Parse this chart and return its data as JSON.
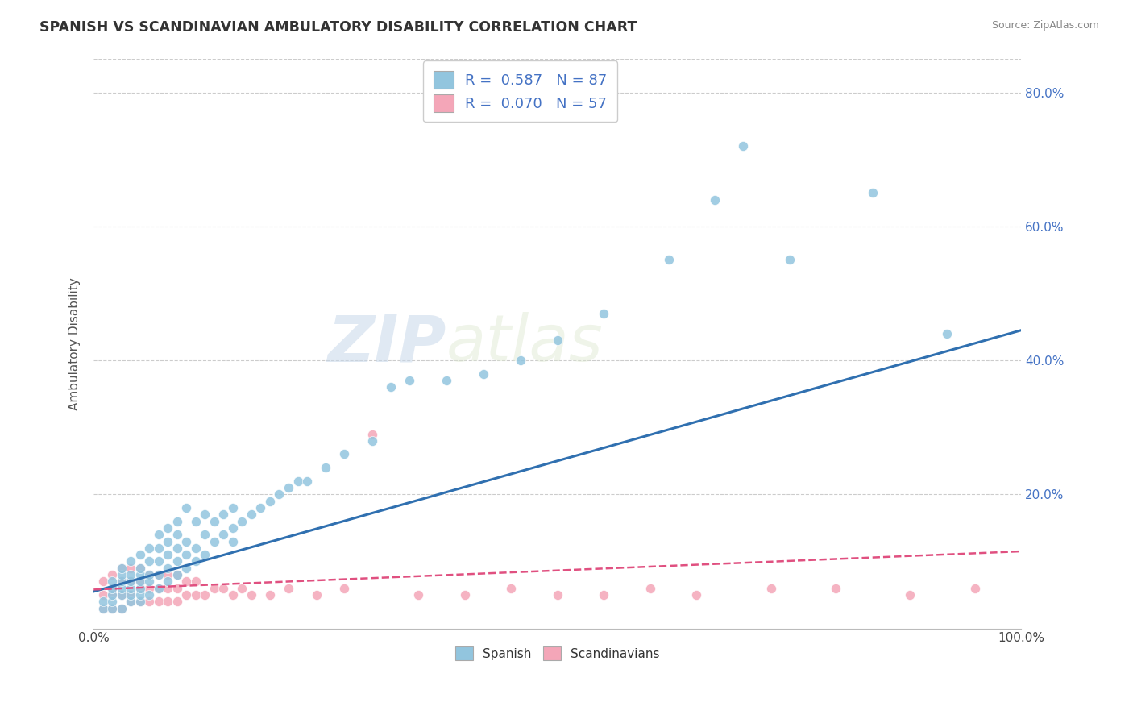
{
  "title": "SPANISH VS SCANDINAVIAN AMBULATORY DISABILITY CORRELATION CHART",
  "source": "Source: ZipAtlas.com",
  "ylabel": "Ambulatory Disability",
  "xlim": [
    0.0,
    1.0
  ],
  "ylim": [
    0.0,
    0.85
  ],
  "y_tick_labels": [
    "20.0%",
    "40.0%",
    "60.0%",
    "80.0%"
  ],
  "y_tick_values": [
    0.2,
    0.4,
    0.6,
    0.8
  ],
  "spanish_R": "0.587",
  "spanish_N": "87",
  "scand_R": "0.070",
  "scand_N": "57",
  "spanish_color": "#92C5DE",
  "scand_color": "#F4A6B8",
  "spanish_line_color": "#3070B0",
  "scand_line_color": "#E05080",
  "background_color": "#ffffff",
  "grid_color": "#cccccc",
  "watermark_zip": "ZIP",
  "watermark_atlas": "atlas",
  "spanish_x": [
    0.01,
    0.01,
    0.02,
    0.02,
    0.02,
    0.02,
    0.02,
    0.03,
    0.03,
    0.03,
    0.03,
    0.03,
    0.03,
    0.04,
    0.04,
    0.04,
    0.04,
    0.04,
    0.04,
    0.05,
    0.05,
    0.05,
    0.05,
    0.05,
    0.05,
    0.05,
    0.06,
    0.06,
    0.06,
    0.06,
    0.06,
    0.07,
    0.07,
    0.07,
    0.07,
    0.07,
    0.08,
    0.08,
    0.08,
    0.08,
    0.08,
    0.09,
    0.09,
    0.09,
    0.09,
    0.09,
    0.1,
    0.1,
    0.1,
    0.1,
    0.11,
    0.11,
    0.11,
    0.12,
    0.12,
    0.12,
    0.13,
    0.13,
    0.14,
    0.14,
    0.15,
    0.15,
    0.15,
    0.16,
    0.17,
    0.18,
    0.19,
    0.2,
    0.21,
    0.22,
    0.23,
    0.25,
    0.27,
    0.3,
    0.32,
    0.34,
    0.38,
    0.42,
    0.46,
    0.5,
    0.55,
    0.62,
    0.67,
    0.7,
    0.75,
    0.84,
    0.92
  ],
  "spanish_y": [
    0.03,
    0.04,
    0.03,
    0.04,
    0.05,
    0.06,
    0.07,
    0.03,
    0.05,
    0.06,
    0.07,
    0.08,
    0.09,
    0.04,
    0.05,
    0.06,
    0.07,
    0.08,
    0.1,
    0.04,
    0.05,
    0.06,
    0.07,
    0.08,
    0.09,
    0.11,
    0.05,
    0.07,
    0.08,
    0.1,
    0.12,
    0.06,
    0.08,
    0.1,
    0.12,
    0.14,
    0.07,
    0.09,
    0.11,
    0.13,
    0.15,
    0.08,
    0.1,
    0.12,
    0.14,
    0.16,
    0.09,
    0.11,
    0.13,
    0.18,
    0.1,
    0.12,
    0.16,
    0.11,
    0.14,
    0.17,
    0.13,
    0.16,
    0.14,
    0.17,
    0.13,
    0.15,
    0.18,
    0.16,
    0.17,
    0.18,
    0.19,
    0.2,
    0.21,
    0.22,
    0.22,
    0.24,
    0.26,
    0.28,
    0.36,
    0.37,
    0.37,
    0.38,
    0.4,
    0.43,
    0.47,
    0.55,
    0.64,
    0.72,
    0.55,
    0.65,
    0.44
  ],
  "scand_x": [
    0.01,
    0.01,
    0.01,
    0.02,
    0.02,
    0.02,
    0.02,
    0.03,
    0.03,
    0.03,
    0.03,
    0.04,
    0.04,
    0.04,
    0.04,
    0.05,
    0.05,
    0.05,
    0.05,
    0.06,
    0.06,
    0.06,
    0.07,
    0.07,
    0.07,
    0.08,
    0.08,
    0.08,
    0.09,
    0.09,
    0.09,
    0.1,
    0.1,
    0.11,
    0.11,
    0.12,
    0.13,
    0.14,
    0.15,
    0.16,
    0.17,
    0.19,
    0.21,
    0.24,
    0.27,
    0.3,
    0.35,
    0.4,
    0.45,
    0.5,
    0.55,
    0.6,
    0.65,
    0.73,
    0.8,
    0.88,
    0.95
  ],
  "scand_y": [
    0.03,
    0.05,
    0.07,
    0.03,
    0.05,
    0.06,
    0.08,
    0.03,
    0.05,
    0.07,
    0.09,
    0.04,
    0.05,
    0.07,
    0.09,
    0.04,
    0.06,
    0.07,
    0.09,
    0.04,
    0.06,
    0.08,
    0.04,
    0.06,
    0.08,
    0.04,
    0.06,
    0.08,
    0.04,
    0.06,
    0.08,
    0.05,
    0.07,
    0.05,
    0.07,
    0.05,
    0.06,
    0.06,
    0.05,
    0.06,
    0.05,
    0.05,
    0.06,
    0.05,
    0.06,
    0.29,
    0.05,
    0.05,
    0.06,
    0.05,
    0.05,
    0.06,
    0.05,
    0.06,
    0.06,
    0.05,
    0.06
  ],
  "sp_line_x0": 0.0,
  "sp_line_y0": 0.055,
  "sp_line_x1": 1.0,
  "sp_line_y1": 0.445,
  "sc_line_x0": 0.0,
  "sc_line_y0": 0.058,
  "sc_line_x1": 1.0,
  "sc_line_y1": 0.115
}
